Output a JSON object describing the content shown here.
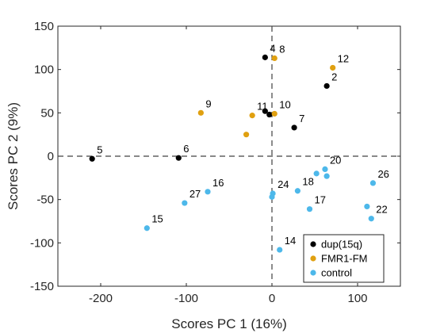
{
  "chart_data": {
    "type": "scatter",
    "title": "",
    "xlabel": "Scores PC 1 (16%)",
    "ylabel": "Scores PC 2 (9%)",
    "xlim": [
      -250,
      150
    ],
    "ylim": [
      -150,
      150
    ],
    "xticks": [
      -200,
      -100,
      0,
      100
    ],
    "yticks": [
      -150,
      -100,
      -50,
      0,
      50,
      100,
      150
    ],
    "xtick_labels": [
      "-200",
      "-100",
      "0",
      "100"
    ],
    "ytick_labels": [
      "-150",
      "-100",
      "-50",
      "0",
      "50",
      "100",
      "150"
    ],
    "grid": false,
    "reference_lines": "dashed lines at x = 0 and y = 0",
    "legend": "bottom-right",
    "series": [
      {
        "name": "dup(15q)",
        "color": "#000000",
        "points": [
          {
            "label": "4",
            "x": -8,
            "y": 114
          },
          {
            "label": "2",
            "x": 64,
            "y": 81
          },
          {
            "label": "7",
            "x": 26,
            "y": 33
          },
          {
            "label": "5",
            "x": -210,
            "y": -3
          },
          {
            "label": "6",
            "x": -109,
            "y": -2
          },
          {
            "label": "",
            "x": -8,
            "y": 52
          },
          {
            "label": "",
            "x": -3,
            "y": 48
          }
        ]
      },
      {
        "name": "FMR1-FM",
        "color": "#e0a010",
        "points": [
          {
            "label": "8",
            "x": 3,
            "y": 113
          },
          {
            "label": "12",
            "x": 71,
            "y": 102
          },
          {
            "label": "9",
            "x": -83,
            "y": 50
          },
          {
            "label": "10",
            "x": 3,
            "y": 49
          },
          {
            "label": "11",
            "x": -23,
            "y": 47
          },
          {
            "label": "",
            "x": -30,
            "y": 25
          }
        ]
      },
      {
        "name": "control",
        "color": "#4db8ea",
        "points": [
          {
            "label": "20",
            "x": 62,
            "y": -15
          },
          {
            "label": "26",
            "x": 118,
            "y": -31
          },
          {
            "label": "18",
            "x": 30,
            "y": -40
          },
          {
            "label": "24",
            "x": 1,
            "y": -43
          },
          {
            "label": "16",
            "x": -75,
            "y": -41
          },
          {
            "label": "27",
            "x": -102,
            "y": -54
          },
          {
            "label": "17",
            "x": 44,
            "y": -61
          },
          {
            "label": "22",
            "x": 116,
            "y": -72
          },
          {
            "label": "15",
            "x": -146,
            "y": -83
          },
          {
            "label": "14",
            "x": 9,
            "y": -108
          },
          {
            "label": "",
            "x": 52,
            "y": -20
          },
          {
            "label": "",
            "x": 64,
            "y": -23
          },
          {
            "label": "",
            "x": 0,
            "y": -47
          },
          {
            "label": "",
            "x": 111,
            "y": -58
          }
        ]
      }
    ]
  }
}
